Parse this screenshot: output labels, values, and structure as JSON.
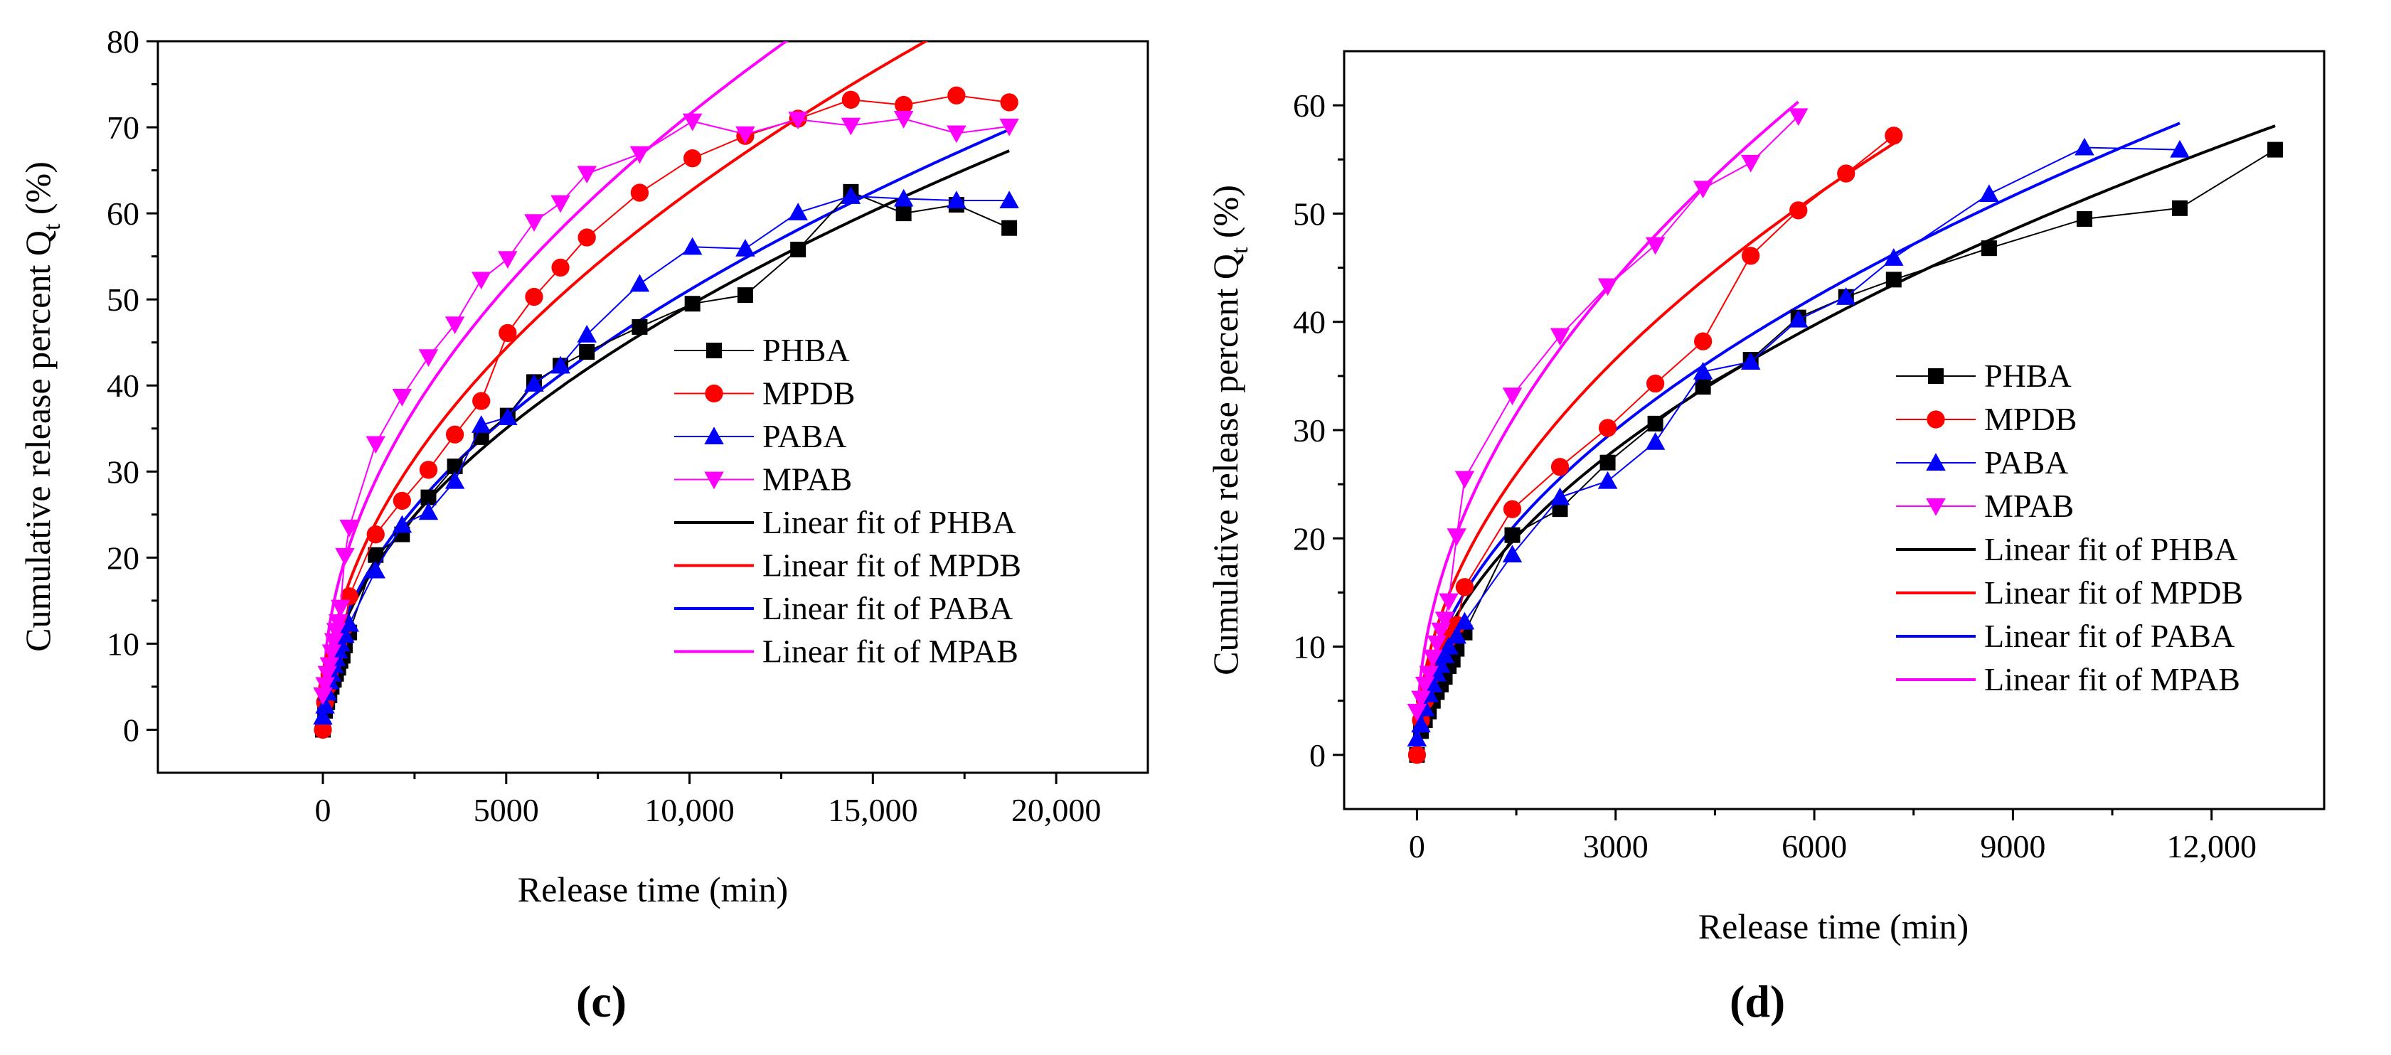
{
  "chart_data": [
    {
      "panel": "(c)",
      "type": "scatter",
      "xlabel": "Release time (min)",
      "ylabel": "Cumulative release percent Q",
      "ylabel_sub": "t",
      "ylabel_unit": " (%)",
      "xlim": [
        -4500,
        22500
      ],
      "ylim": [
        -5,
        80
      ],
      "xticks": [
        0,
        5000,
        10000,
        15000,
        20000
      ],
      "xtick_labels": [
        "0",
        "5000",
        "10,000",
        "15,000",
        "20,000"
      ],
      "yticks": [
        0,
        10,
        20,
        30,
        40,
        50,
        60,
        70,
        80
      ],
      "ytick_labels": [
        "0",
        "10",
        "20",
        "30",
        "40",
        "50",
        "60",
        "70",
        "80"
      ],
      "legend_position": "bottom-right",
      "series": [
        {
          "name": "PHBA",
          "color": "#000000",
          "marker": "square",
          "x": [
            0,
            60,
            120,
            180,
            240,
            300,
            360,
            420,
            480,
            540,
            600,
            720,
            1440,
            2160,
            2880,
            3600,
            4320,
            5040,
            5760,
            6480,
            7200,
            8640,
            10080,
            11520,
            12960,
            14400,
            15840,
            17280,
            18720
          ],
          "y": [
            0,
            2.2,
            3.2,
            4.0,
            5.0,
            5.8,
            6.5,
            7.2,
            8.0,
            8.6,
            9.8,
            11.3,
            20.3,
            22.7,
            27.0,
            30.6,
            34.0,
            36.5,
            40.4,
            42.3,
            43.9,
            46.8,
            49.5,
            50.5,
            55.8,
            62.5,
            60.0,
            61.0,
            58.3
          ]
        },
        {
          "name": "MPDB",
          "color": "#ff0000",
          "marker": "circle",
          "x": [
            0,
            60,
            120,
            180,
            240,
            300,
            360,
            420,
            480,
            600,
            720,
            1440,
            2160,
            2880,
            3600,
            4320,
            5040,
            5760,
            6480,
            7200,
            8640,
            10080,
            11520,
            12960,
            14400,
            15840,
            17280,
            18720
          ],
          "y": [
            0,
            3.2,
            5.0,
            6.4,
            7.4,
            8.4,
            9.2,
            10.0,
            10.8,
            12.0,
            15.5,
            22.7,
            26.6,
            30.2,
            34.3,
            38.2,
            46.1,
            50.3,
            53.7,
            57.2,
            62.4,
            66.4,
            69.0,
            71.0,
            73.2,
            72.6,
            73.7,
            72.9
          ]
        },
        {
          "name": "PABA",
          "color": "#0000ff",
          "marker": "triangle-up",
          "x": [
            0,
            60,
            120,
            180,
            240,
            300,
            360,
            420,
            480,
            600,
            720,
            1440,
            2160,
            2880,
            3600,
            4320,
            5040,
            5760,
            6480,
            7200,
            8640,
            10080,
            11520,
            12960,
            14400,
            15840,
            17280,
            18720
          ],
          "y": [
            1.5,
            2.8,
            4.3,
            5.6,
            6.5,
            7.5,
            8.3,
            9.2,
            10.0,
            11.0,
            12.3,
            18.5,
            23.8,
            25.3,
            28.9,
            35.4,
            36.3,
            40.2,
            42.3,
            45.9,
            51.8,
            56.1,
            55.9,
            60.1,
            62.0,
            61.7,
            61.5,
            61.5
          ]
        },
        {
          "name": "MPAB",
          "color": "#ff00ff",
          "marker": "triangle-down",
          "x": [
            0,
            60,
            120,
            180,
            240,
            300,
            360,
            420,
            480,
            600,
            720,
            1440,
            2160,
            2880,
            3600,
            4320,
            5040,
            5760,
            6480,
            7200,
            8640,
            10080,
            11520,
            12960,
            14400,
            15840,
            17280,
            18720
          ],
          "y": [
            4.0,
            5.2,
            6.5,
            7.5,
            9.0,
            10.3,
            11.5,
            12.5,
            14.2,
            20.2,
            23.5,
            33.2,
            38.7,
            43.3,
            47.1,
            52.3,
            54.7,
            59.0,
            61.2,
            64.6,
            66.9,
            70.7,
            69.2,
            70.9,
            70.2,
            71.0,
            69.3,
            70.1
          ]
        }
      ],
      "fits": [
        {
          "name": "Linear fit of PHBA",
          "color": "#000000",
          "a": 0.5,
          "b": 0.488,
          "x_max": 18720
        },
        {
          "name": "Linear fit of MPDB",
          "color": "#ff0000",
          "a": 0.5,
          "b": 0.62,
          "x_max": 18720
        },
        {
          "name": "Linear fit of PABA",
          "color": "#0000ff",
          "a": 0.5,
          "b": 0.506,
          "x_max": 18720
        },
        {
          "name": "Linear fit of MPAB",
          "color": "#ff00ff",
          "a": 3.0,
          "b": 0.685,
          "x_max": 18720
        }
      ]
    },
    {
      "panel": "(d)",
      "type": "scatter",
      "xlabel": "Release time (min)",
      "ylabel": "Cumulative release percent Q",
      "ylabel_sub": "t",
      "ylabel_unit": " (%)",
      "xlim": [
        -1100,
        13700
      ],
      "ylim": [
        -5,
        65
      ],
      "xticks": [
        0,
        3000,
        6000,
        9000,
        12000
      ],
      "xtick_labels": [
        "0",
        "3000",
        "6000",
        "9000",
        "12,000"
      ],
      "yticks": [
        0,
        10,
        20,
        30,
        40,
        50,
        60
      ],
      "ytick_labels": [
        "0",
        "10",
        "20",
        "30",
        "40",
        "50",
        "60"
      ],
      "legend_position": "bottom-right",
      "series": [
        {
          "name": "PHBA",
          "color": "#000000",
          "marker": "square",
          "x": [
            0,
            60,
            120,
            180,
            240,
            300,
            360,
            420,
            480,
            540,
            600,
            720,
            1440,
            2160,
            2880,
            3600,
            4320,
            5040,
            5760,
            6480,
            7200,
            8640,
            10080,
            11520,
            12960
          ],
          "y": [
            0,
            2.2,
            3.2,
            4.0,
            5.0,
            5.8,
            6.5,
            7.2,
            8.2,
            8.8,
            9.8,
            11.3,
            20.3,
            22.7,
            27.0,
            30.6,
            34.0,
            36.5,
            40.4,
            42.3,
            43.9,
            46.8,
            49.5,
            50.5,
            55.9
          ]
        },
        {
          "name": "MPDB",
          "color": "#ff0000",
          "marker": "circle",
          "x": [
            0,
            60,
            120,
            180,
            240,
            300,
            360,
            420,
            480,
            600,
            720,
            1440,
            2160,
            2880,
            3600,
            4320,
            5040,
            5760,
            6480,
            7200
          ],
          "y": [
            0,
            3.2,
            5.0,
            6.4,
            7.4,
            8.4,
            9.2,
            10.0,
            10.8,
            12.0,
            15.5,
            22.7,
            26.6,
            30.2,
            34.3,
            38.2,
            46.1,
            50.3,
            53.7,
            57.2
          ]
        },
        {
          "name": "PABA",
          "color": "#0000ff",
          "marker": "triangle-up",
          "x": [
            0,
            60,
            120,
            180,
            240,
            300,
            360,
            420,
            480,
            600,
            720,
            1440,
            2160,
            2880,
            3600,
            4320,
            5040,
            5760,
            6480,
            7200,
            8640,
            10080,
            11520
          ],
          "y": [
            1.5,
            2.8,
            4.3,
            5.6,
            6.5,
            7.5,
            8.3,
            9.2,
            10.0,
            11.0,
            12.3,
            18.5,
            23.8,
            25.3,
            28.9,
            35.4,
            36.3,
            40.2,
            42.3,
            45.9,
            51.8,
            56.1,
            55.9
          ]
        },
        {
          "name": "MPAB",
          "color": "#ff00ff",
          "marker": "triangle-down",
          "x": [
            0,
            60,
            120,
            180,
            240,
            300,
            360,
            420,
            480,
            600,
            720,
            1440,
            2160,
            2880,
            3600,
            4320,
            5040,
            5760
          ],
          "y": [
            4.0,
            5.2,
            6.5,
            7.5,
            9.0,
            10.3,
            11.5,
            12.5,
            14.2,
            20.2,
            25.5,
            33.2,
            38.7,
            43.3,
            47.1,
            52.3,
            54.7,
            59.0
          ]
        }
      ],
      "fits": [
        {
          "name": "Linear fit of PHBA",
          "color": "#000000",
          "a": 0.5,
          "b": 0.506,
          "x_max": 12960
        },
        {
          "name": "Linear fit of MPDB",
          "color": "#ff0000",
          "a": 0.3,
          "b": 0.662,
          "x_max": 7200
        },
        {
          "name": "Linear fit of PABA",
          "color": "#0000ff",
          "a": 0.5,
          "b": 0.539,
          "x_max": 11520
        },
        {
          "name": "Linear fit of MPAB",
          "color": "#ff00ff",
          "a": 1.5,
          "b": 0.775,
          "x_max": 5760
        }
      ]
    }
  ]
}
